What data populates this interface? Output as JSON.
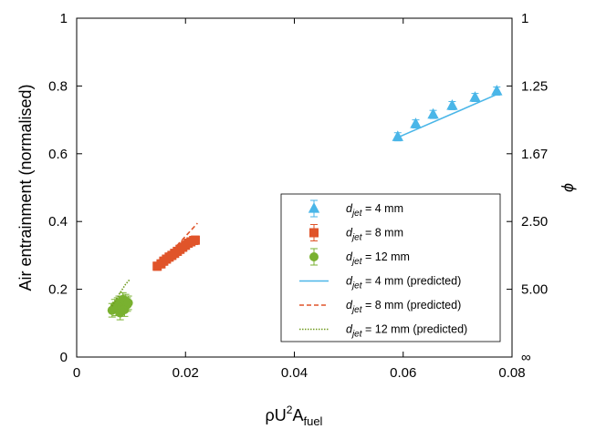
{
  "chart_data": {
    "type": "scatter",
    "xlabel_main": "ρU",
    "xlabel_sup": "2",
    "xlabel_after": "A",
    "xlabel_sub": "fuel",
    "ylabel": "Air entrainment (normalised)",
    "y2label": "ϕ",
    "xlim": [
      0,
      0.08
    ],
    "ylim": [
      0,
      1
    ],
    "xticks": [
      "0",
      "0.02",
      "0.04",
      "0.06",
      "0.08"
    ],
    "xtick_values": [
      0,
      0.02,
      0.04,
      0.06,
      0.08
    ],
    "yticks": [
      "0",
      "0.2",
      "0.4",
      "0.6",
      "0.8",
      "1"
    ],
    "ytick_values": [
      0,
      0.2,
      0.4,
      0.6,
      0.8,
      1
    ],
    "y2ticks": [
      "∞",
      "5.00",
      "2.50",
      "1.67",
      "1.25",
      "1"
    ],
    "y2tick_values": [
      0,
      0.2,
      0.4,
      0.6,
      0.8,
      1
    ],
    "legend_position": "lower-right",
    "series": [
      {
        "legend_pre": "d",
        "legend_sub": "jet",
        "legend_post": " = 4 mm",
        "marker": "triangle",
        "color": "#4ab6e8",
        "x": [
          0.059,
          0.0623,
          0.0655,
          0.069,
          0.0732,
          0.0772
        ],
        "y": [
          0.65,
          0.688,
          0.716,
          0.742,
          0.766,
          0.785
        ],
        "err": [
          0.012,
          0.012,
          0.012,
          0.012,
          0.012,
          0.012
        ]
      },
      {
        "legend_pre": "d",
        "legend_sub": "jet",
        "legend_post": " = 8 mm",
        "marker": "square",
        "color": "#e0542a",
        "x": [
          0.0148,
          0.0155,
          0.016,
          0.0165,
          0.017,
          0.0175,
          0.018,
          0.0185,
          0.019,
          0.0195,
          0.02,
          0.0205,
          0.021,
          0.0215,
          0.0218
        ],
        "y": [
          0.268,
          0.275,
          0.283,
          0.289,
          0.295,
          0.3,
          0.306,
          0.312,
          0.318,
          0.324,
          0.33,
          0.336,
          0.34,
          0.344,
          0.345
        ],
        "err": [
          0.012,
          0.012,
          0.012,
          0.012,
          0.012,
          0.012,
          0.012,
          0.012,
          0.012,
          0.012,
          0.012,
          0.012,
          0.012,
          0.012,
          0.012
        ]
      },
      {
        "legend_pre": "d",
        "legend_sub": "jet",
        "legend_post": " = 12 mm",
        "marker": "circle",
        "color": "#79b130",
        "x": [
          0.0065,
          0.007,
          0.0072,
          0.0075,
          0.0078,
          0.008,
          0.0083,
          0.0085,
          0.0088,
          0.009,
          0.0093,
          0.0095
        ],
        "y": [
          0.138,
          0.15,
          0.142,
          0.155,
          0.16,
          0.13,
          0.148,
          0.17,
          0.14,
          0.165,
          0.155,
          0.16
        ],
        "err": [
          0.02,
          0.02,
          0.02,
          0.02,
          0.02,
          0.02,
          0.02,
          0.02,
          0.02,
          0.02,
          0.02,
          0.02
        ]
      },
      {
        "legend_pre": "d",
        "legend_sub": "jet",
        "legend_post": " = 4 mm (predicted)",
        "line": "solid",
        "color": "#4ab6e8",
        "x": [
          0.059,
          0.0772
        ],
        "y": [
          0.648,
          0.775
        ]
      },
      {
        "legend_pre": "d",
        "legend_sub": "jet",
        "legend_post": " = 8 mm (predicted)",
        "line": "dashed",
        "color": "#e0542a",
        "x": [
          0.0148,
          0.0222
        ],
        "y": [
          0.265,
          0.395
        ]
      },
      {
        "legend_pre": "d",
        "legend_sub": "jet",
        "legend_post": " = 12 mm (predicted)",
        "line": "dotted",
        "color": "#6f9a1e",
        "x": [
          0.0065,
          0.0078,
          0.009,
          0.0097
        ],
        "y": [
          0.15,
          0.185,
          0.215,
          0.228
        ]
      }
    ]
  }
}
